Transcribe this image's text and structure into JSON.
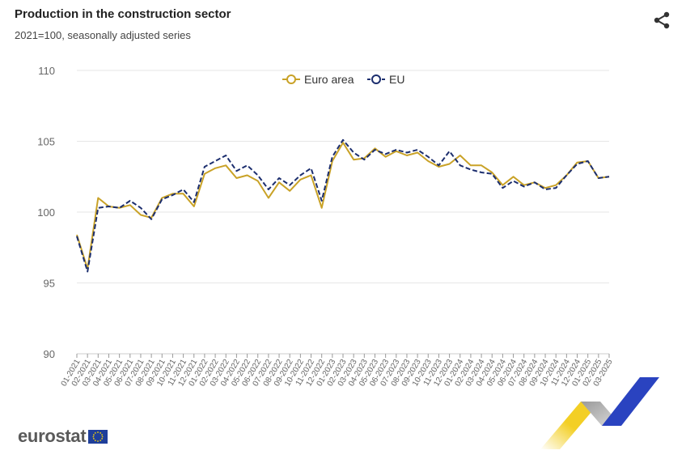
{
  "header": {
    "title": "Production in the construction sector",
    "subtitle": "2021=100, seasonally adjusted series"
  },
  "icons": {
    "share": "share-icon"
  },
  "logo": {
    "text": "eurostat"
  },
  "colors": {
    "euro_area": "#c9a227",
    "eu": "#1c2e6e",
    "grid": "#e6e6e6",
    "axis_text": "#666666"
  },
  "chart_data": {
    "type": "line",
    "title": "Production in the construction sector",
    "subtitle": "2021=100, seasonally adjusted series",
    "xlabel": "",
    "ylabel": "",
    "ylim": [
      90,
      110
    ],
    "yticks": [
      90,
      95,
      100,
      105,
      110
    ],
    "grid": true,
    "legend_position": "top-center",
    "categories": [
      "01-2021",
      "02-2021",
      "03-2021",
      "04-2021",
      "05-2021",
      "06-2021",
      "07-2021",
      "08-2021",
      "09-2021",
      "10-2021",
      "11-2021",
      "12-2021",
      "01-2022",
      "02-2022",
      "03-2022",
      "04-2022",
      "05-2022",
      "06-2022",
      "07-2022",
      "08-2022",
      "09-2022",
      "10-2022",
      "11-2022",
      "12-2022",
      "01-2023",
      "02-2023",
      "03-2023",
      "04-2023",
      "05-2023",
      "06-2023",
      "07-2023",
      "08-2023",
      "09-2023",
      "10-2023",
      "11-2023",
      "12-2023",
      "01-2024",
      "02-2024",
      "03-2024",
      "04-2024",
      "05-2024",
      "06-2024",
      "07-2024",
      "08-2024",
      "09-2024",
      "10-2024",
      "11-2024",
      "12-2024",
      "01-2025",
      "02-2025",
      "03-2025"
    ],
    "series": [
      {
        "name": "Euro area",
        "style": "solid",
        "color": "#c9a227",
        "values": [
          98.4,
          96.0,
          101.0,
          100.4,
          100.3,
          100.5,
          99.8,
          99.6,
          101.0,
          101.3,
          101.3,
          100.4,
          102.7,
          103.1,
          103.3,
          102.4,
          102.6,
          102.2,
          101.0,
          102.1,
          101.5,
          102.3,
          102.6,
          100.3,
          103.6,
          104.9,
          103.7,
          103.8,
          104.5,
          103.9,
          104.3,
          104.0,
          104.2,
          103.6,
          103.2,
          103.4,
          104.0,
          103.3,
          103.3,
          102.8,
          101.9,
          102.5,
          101.9,
          102.1,
          101.7,
          101.9,
          102.6,
          103.5,
          103.6,
          102.4,
          102.5
        ]
      },
      {
        "name": "EU",
        "style": "dashed",
        "color": "#1c2e6e",
        "values": [
          98.3,
          95.8,
          100.3,
          100.4,
          100.3,
          100.8,
          100.3,
          99.5,
          100.9,
          101.2,
          101.6,
          100.7,
          103.2,
          103.6,
          104.0,
          102.9,
          103.3,
          102.6,
          101.6,
          102.4,
          101.9,
          102.6,
          103.1,
          100.8,
          103.9,
          105.1,
          104.2,
          103.7,
          104.4,
          104.1,
          104.4,
          104.2,
          104.4,
          103.9,
          103.3,
          104.3,
          103.3,
          103.0,
          102.8,
          102.7,
          101.7,
          102.2,
          101.8,
          102.1,
          101.6,
          101.7,
          102.6,
          103.4,
          103.6,
          102.4,
          102.5
        ]
      }
    ]
  }
}
